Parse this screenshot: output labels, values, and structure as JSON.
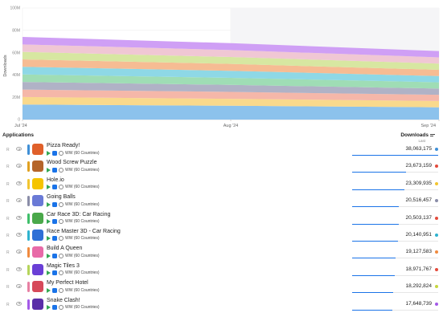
{
  "chart_data": {
    "type": "area",
    "stacked": true,
    "ylabel": "Downloads",
    "x": [
      "Jul '24",
      "Aug '24",
      "Sep '24"
    ],
    "y_ticks": [
      "0",
      "20M",
      "40M",
      "60M",
      "80M",
      "100M"
    ],
    "ylim": [
      0,
      100
    ],
    "grid": true,
    "series": [
      {
        "color": "#8cc2ec",
        "values": [
          13.5,
          12.4,
          11.0
        ]
      },
      {
        "color": "#f9d98c",
        "values": [
          6.7,
          6.2,
          5.6
        ]
      },
      {
        "color": "#f5b7a9",
        "values": [
          6.7,
          6.2,
          5.6
        ]
      },
      {
        "color": "#b0b2c6",
        "values": [
          6.8,
          6.3,
          5.6
        ]
      },
      {
        "color": "#9fddb5",
        "values": [
          6.8,
          6.3,
          5.6
        ]
      },
      {
        "color": "#8ed8e6",
        "values": [
          6.8,
          6.3,
          5.6
        ]
      },
      {
        "color": "#f6bc93",
        "values": [
          6.7,
          6.2,
          5.6
        ]
      },
      {
        "color": "#d7e7a1",
        "values": [
          6.7,
          6.2,
          5.6
        ]
      },
      {
        "color": "#f0c7d4",
        "values": [
          6.7,
          6.2,
          5.6
        ]
      },
      {
        "color": "#cf9ff5",
        "values": [
          6.7,
          6.2,
          5.6
        ]
      }
    ]
  },
  "header": {
    "applications_label": "Applications",
    "downloads_label": "Downloads",
    "downloads_sub": "Last"
  },
  "rows": [
    {
      "rank": "R",
      "name": "Pizza Ready!",
      "meta": "WW (60 Countries)",
      "value": "38,063,175",
      "fraction": 1.0,
      "color": "#3f8fd6",
      "dot": "#3f8fd6",
      "icon": "#e0602a"
    },
    {
      "rank": "R",
      "name": "Wood Screw Puzzle",
      "meta": "WW (60 Countries)",
      "value": "23,673,159",
      "fraction": 0.622,
      "color": "#e0a020",
      "dot": "#e34b3c",
      "icon": "#b5652b"
    },
    {
      "rank": "R",
      "name": "Hole.io",
      "meta": "WW (60 Countries)",
      "value": "23,309,935",
      "fraction": 0.612,
      "color": "#f2c530",
      "dot": "#f2c530",
      "icon": "#f5c400"
    },
    {
      "rank": "R",
      "name": "Going Balls",
      "meta": "WW (60 Countries)",
      "value": "20,516,457",
      "fraction": 0.539,
      "color": "#8a8da8",
      "dot": "#8a8da8",
      "icon": "#6a7ad6"
    },
    {
      "rank": "R",
      "name": "Car Race 3D: Car Racing",
      "meta": "WW (60 Countries)",
      "value": "20,503,137",
      "fraction": 0.539,
      "color": "#3fbf6a",
      "dot": "#e34b3c",
      "icon": "#4aa84a"
    },
    {
      "rank": "R",
      "name": "Race Master 3D - Car Racing",
      "meta": "WW (60 Countries)",
      "value": "20,140,951",
      "fraction": 0.529,
      "color": "#2fb3cf",
      "dot": "#2fb3cf",
      "icon": "#2f6fd6"
    },
    {
      "rank": "R",
      "name": "Build A Queen",
      "meta": "WW (60 Countries)",
      "value": "19,127,583",
      "fraction": 0.503,
      "color": "#f08a3e",
      "dot": "#f08a3e",
      "icon": "#e86aa8"
    },
    {
      "rank": "R",
      "name": "Magic Tiles 3",
      "meta": "WW (60 Countries)",
      "value": "18,971,767",
      "fraction": 0.498,
      "color": "#b5d45a",
      "dot": "#e34b3c",
      "icon": "#6a3fd6"
    },
    {
      "rank": "R",
      "name": "My Perfect Hotel",
      "meta": "WW (60 Countries)",
      "value": "18,292,824",
      "fraction": 0.481,
      "color": "#e77fa2",
      "dot": "#c6d63f",
      "icon": "#d64a5a"
    },
    {
      "rank": "R",
      "name": "Snake Clash!",
      "meta": "WW (60 Countries)",
      "value": "17,648,739",
      "fraction": 0.464,
      "color": "#a45ae8",
      "dot": "#a45ae8",
      "icon": "#5a2fa8"
    }
  ]
}
